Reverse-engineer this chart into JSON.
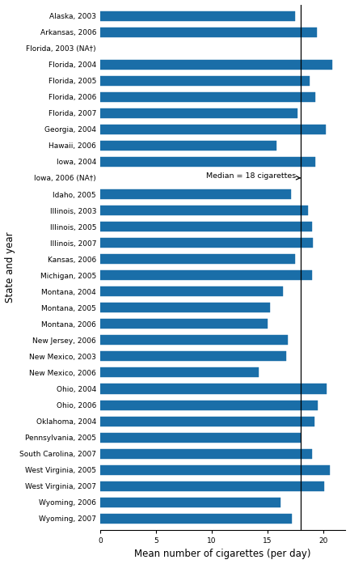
{
  "categories": [
    "Alaska, 2003",
    "Arkansas, 2006",
    "Florida, 2003 (NA†)",
    "Florida, 2004",
    "Florida, 2005",
    "Florida, 2006",
    "Florida, 2007",
    "Georgia, 2004",
    "Hawaii, 2006",
    "Iowa, 2004",
    "Iowa, 2006 (NA†)",
    "Idaho, 2005",
    "Illinois, 2003",
    "Illinois, 2005",
    "Illinois, 2007",
    "Kansas, 2006",
    "Michigan, 2005",
    "Montana, 2004",
    "Montana, 2005",
    "Montana, 2006",
    "New Jersey, 2006",
    "New Mexico, 2003",
    "New Mexico, 2006",
    "Ohio, 2004",
    "Ohio, 2006",
    "Oklahoma, 2004",
    "Pennsylvania, 2005",
    "South Carolina, 2007",
    "West Virginia, 2005",
    "West Virginia, 2007",
    "Wyoming, 2006",
    "Wyoming, 2007"
  ],
  "values": [
    17.5,
    19.4,
    0,
    20.8,
    18.8,
    19.3,
    17.7,
    20.2,
    15.8,
    19.3,
    0,
    17.1,
    18.6,
    19.0,
    19.1,
    17.5,
    19.0,
    16.4,
    15.2,
    15.0,
    16.8,
    16.7,
    14.2,
    20.3,
    19.5,
    19.2,
    18.0,
    19.0,
    20.6,
    20.1,
    16.2,
    17.2
  ],
  "bar_color": "#1a6ea8",
  "median": 18.0,
  "median_label": "Median = 18 cigarettes",
  "xlabel": "Mean number of cigarettes (per day)",
  "ylabel": "State and year",
  "xlim": [
    0,
    22
  ],
  "xticks": [
    0,
    5,
    10,
    15,
    20
  ],
  "na_indices": [
    2,
    10
  ],
  "bar_height": 0.6,
  "tick_fontsize": 6.5,
  "label_fontsize": 8.5
}
